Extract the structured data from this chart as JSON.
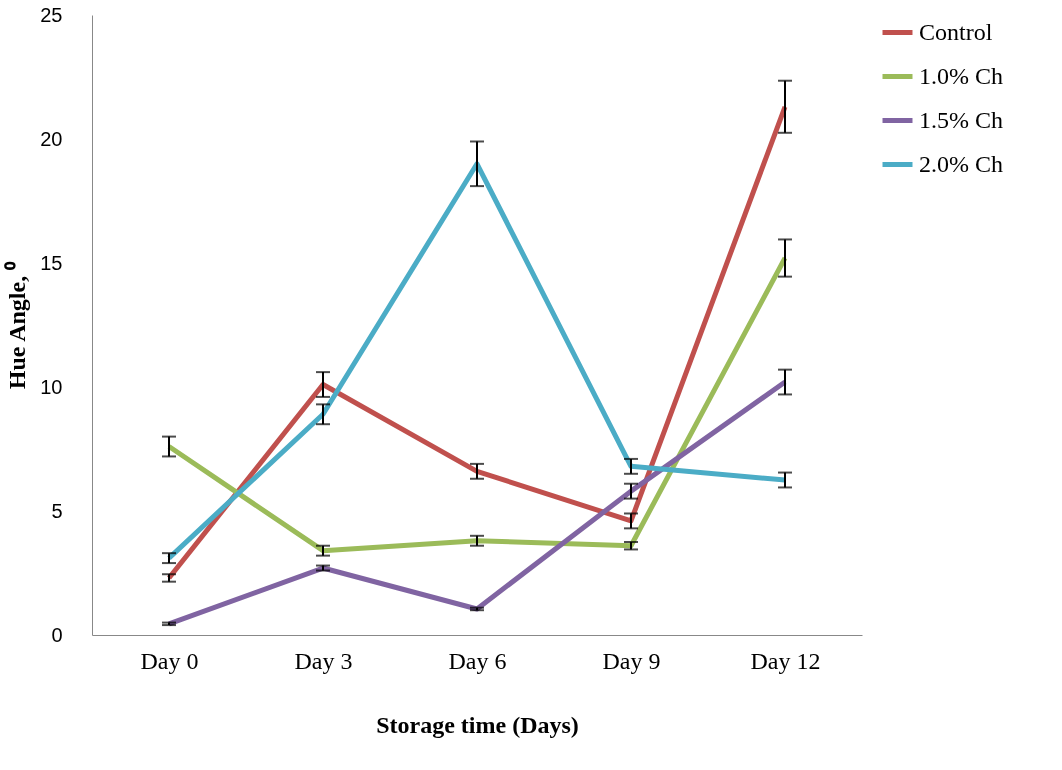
{
  "chart_data": {
    "type": "line",
    "xlabel": "Storage time (Days)",
    "ylabel": "Hue Angle, ⁰",
    "categories": [
      "Day 0",
      "Day 3",
      "Day 6",
      "Day 9",
      "Day 12"
    ],
    "ylim": [
      0,
      25
    ],
    "yticks": [
      0,
      5,
      10,
      15,
      20,
      25
    ],
    "grid": false,
    "legend": "right",
    "marker": "none",
    "line_style": "solid",
    "series": [
      {
        "name": "Control",
        "color": "#c0504d",
        "values": [
          2.3,
          10.1,
          6.6,
          4.6,
          21.3
        ],
        "errors": [
          0.15,
          0.5,
          0.3,
          0.3,
          1.05
        ]
      },
      {
        "name": "1.0% Ch",
        "color": "#9bbb59",
        "values": [
          7.6,
          3.4,
          3.8,
          3.6,
          15.2
        ],
        "errors": [
          0.4,
          0.2,
          0.2,
          0.15,
          0.75
        ]
      },
      {
        "name": "1.5% Ch",
        "color": "#8064a2",
        "values": [
          0.45,
          2.7,
          1.05,
          5.8,
          10.2
        ],
        "errors": [
          0.05,
          0.1,
          0.05,
          0.3,
          0.5
        ]
      },
      {
        "name": "2.0% Ch",
        "color": "#4bacc6",
        "values": [
          3.1,
          8.9,
          19.0,
          6.8,
          6.25
        ],
        "errors": [
          0.2,
          0.4,
          0.9,
          0.3,
          0.3
        ]
      }
    ]
  }
}
